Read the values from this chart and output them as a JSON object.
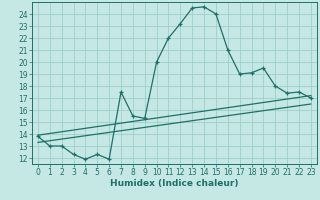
{
  "xlabel": "Humidex (Indice chaleur)",
  "bg_color": "#c5e8e5",
  "grid_color": "#9ecfcb",
  "line_color": "#1e7068",
  "xlim_min": -0.5,
  "xlim_max": 23.5,
  "ylim_min": 11.5,
  "ylim_max": 25.0,
  "yticks": [
    12,
    13,
    14,
    15,
    16,
    17,
    18,
    19,
    20,
    21,
    22,
    23,
    24
  ],
  "xticks": [
    0,
    1,
    2,
    3,
    4,
    5,
    6,
    7,
    8,
    9,
    10,
    11,
    12,
    13,
    14,
    15,
    16,
    17,
    18,
    19,
    20,
    21,
    22,
    23
  ],
  "main_x": [
    0,
    1,
    2,
    3,
    4,
    5,
    6,
    7,
    8,
    9,
    10,
    11,
    12,
    13,
    14,
    15,
    16,
    17,
    18,
    19,
    20,
    21,
    22,
    23
  ],
  "main_y": [
    13.8,
    13.0,
    13.0,
    12.3,
    11.9,
    12.3,
    11.9,
    17.5,
    15.5,
    15.3,
    20.0,
    22.0,
    23.2,
    24.5,
    24.6,
    24.0,
    21.0,
    19.0,
    19.1,
    19.5,
    18.0,
    17.4,
    17.5,
    17.0
  ],
  "line2_x": [
    0,
    23
  ],
  "line2_y": [
    13.9,
    17.2
  ],
  "line3_x": [
    0,
    23
  ],
  "line3_y": [
    13.3,
    16.5
  ],
  "tick_fontsize": 5.5,
  "xlabel_fontsize": 6.5,
  "marker_size": 3.5,
  "linewidth": 0.9
}
